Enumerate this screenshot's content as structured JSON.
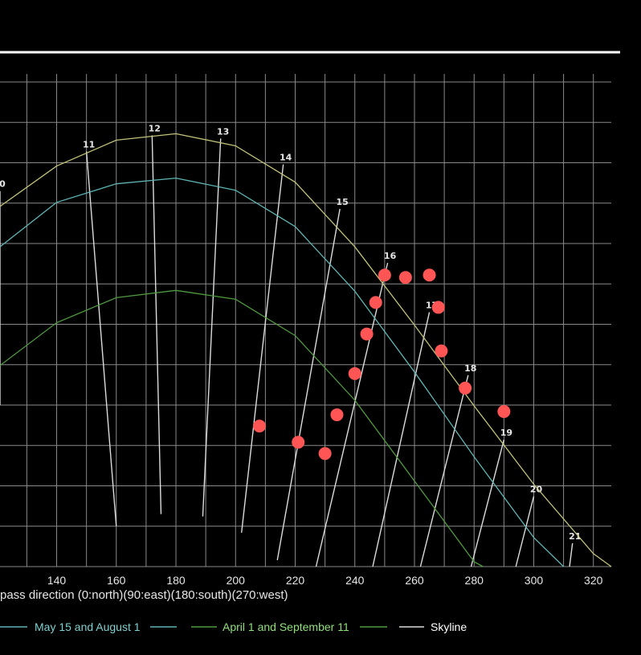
{
  "chart_data": {
    "type": "line",
    "xlabel": "pass direction (0:north)(90:east)(180:south)(270:west)",
    "xlim": [
      121,
      326
    ],
    "ylim": [
      0,
      61
    ],
    "x_ticks": [
      140,
      160,
      180,
      200,
      220,
      240,
      260,
      280,
      300,
      320
    ],
    "grid": true,
    "legend": "bottom",
    "colors": {
      "background": "#000000",
      "grid": "#8a8a8a",
      "top_line": "#ffffff",
      "summer": "#c2c27a",
      "may_aug": "#5fb4b4",
      "apr_sep": "#4f9a3e",
      "hour_lines": "#dcdcdc",
      "skyline": "#ff5555",
      "legend_may_aug": "#7fd0d0",
      "legend_apr_sep": "#8fe07a",
      "legend_skyline": "#ffffff"
    },
    "series": [
      {
        "key": "summer",
        "x": [
          121,
          140,
          160,
          180,
          200,
          220,
          240,
          260,
          280,
          300,
          320,
          326
        ],
        "y": [
          44.6,
          49.6,
          52.8,
          53.6,
          52.1,
          47.6,
          39.6,
          29.9,
          19.9,
          10.2,
          1.6,
          0
        ]
      },
      {
        "key": "may_aug",
        "name": "May 15 and August 1",
        "x": [
          121,
          140,
          160,
          180,
          200,
          220,
          240,
          260,
          280,
          300,
          310
        ],
        "y": [
          39.6,
          45.1,
          47.4,
          48.1,
          46.6,
          42.1,
          34.1,
          24.1,
          13.6,
          3.6,
          0
        ]
      },
      {
        "key": "apr_sep",
        "name": "April 1 and September 11",
        "x": [
          121,
          140,
          160,
          180,
          200,
          220,
          240,
          260,
          280,
          283
        ],
        "y": [
          24.9,
          30.2,
          33.3,
          34.2,
          33.1,
          28.6,
          20.6,
          10.6,
          0.6,
          0
        ]
      }
    ],
    "hour_lines": [
      {
        "label": "0",
        "x1": 121,
        "y1": 46.5,
        "x2": 121,
        "y2": 20
      },
      {
        "label": "11",
        "x1": 150,
        "y1": 51.4,
        "x2": 160,
        "y2": 5
      },
      {
        "label": "12",
        "x1": 172,
        "y1": 53.4,
        "x2": 175,
        "y2": 6.5
      },
      {
        "label": "13",
        "x1": 195,
        "y1": 53.0,
        "x2": 189,
        "y2": 6.2
      },
      {
        "label": "14",
        "x1": 216,
        "y1": 49.8,
        "x2": 202,
        "y2": 4.2
      },
      {
        "label": "15",
        "x1": 235,
        "y1": 44.3,
        "x2": 214,
        "y2": 0.8
      },
      {
        "label": "16",
        "x1": 251,
        "y1": 37.6,
        "x2": 227,
        "y2": 0
      },
      {
        "label": "17",
        "x1": 265,
        "y1": 31.5,
        "x2": 246,
        "y2": 0
      },
      {
        "label": "18",
        "x1": 278,
        "y1": 23.7,
        "x2": 262,
        "y2": 0
      },
      {
        "label": "19",
        "x1": 290,
        "y1": 15.7,
        "x2": 279,
        "y2": 0
      },
      {
        "label": "20",
        "x1": 300,
        "y1": 8.7,
        "x2": 294,
        "y2": 0
      },
      {
        "label": "21",
        "x1": 313,
        "y1": 2.9,
        "x2": 312,
        "y2": 0
      }
    ],
    "skyline": {
      "name": "Skyline",
      "x": [
        208,
        221,
        230,
        234,
        240,
        244,
        247,
        250,
        257,
        265,
        268,
        269,
        277,
        290
      ],
      "y": [
        17.4,
        15.4,
        14.0,
        18.8,
        23.9,
        28.8,
        32.7,
        36.1,
        35.8,
        36.1,
        32.1,
        26.7,
        22.1,
        19.2
      ]
    },
    "legend_items": [
      {
        "label": "May 15 and August 1",
        "color_key": "legend_may_aug",
        "line_key": "may_aug"
      },
      {
        "label": "April 1 and September 11",
        "color_key": "legend_apr_sep",
        "line_key": "apr_sep"
      },
      {
        "label": "Skyline",
        "color_key": "legend_skyline",
        "line_key": "hour_lines"
      }
    ]
  }
}
